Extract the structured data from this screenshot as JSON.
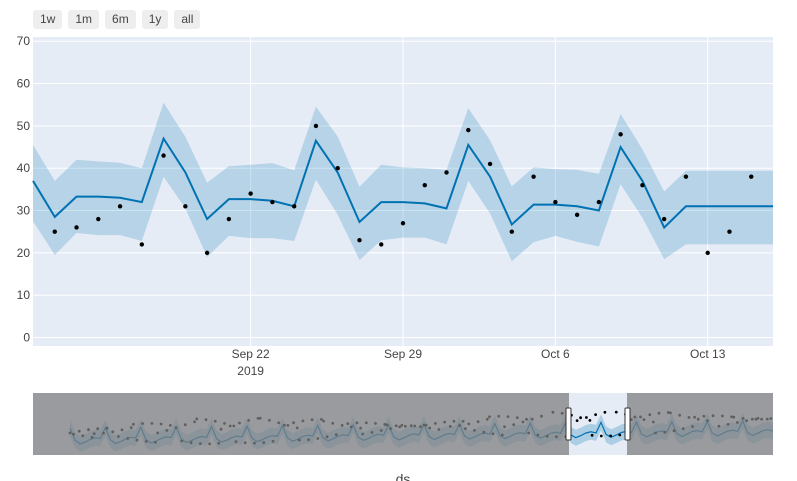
{
  "range_selector": {
    "buttons": [
      "1w",
      "1m",
      "6m",
      "1y",
      "all"
    ]
  },
  "colors": {
    "plot_background": "#e5ecf6",
    "band": "#0072b2",
    "line": "#0072b2",
    "points": "#000000",
    "slider_shade": "#808080"
  },
  "chart_data": {
    "type": "line",
    "xlabel": "ds",
    "ylabel": "",
    "ylim": [
      -2,
      71
    ],
    "xlim": [
      "2019-09-12",
      "2019-10-16"
    ],
    "grid": true,
    "yticks": [
      0,
      10,
      20,
      30,
      40,
      50,
      60,
      70
    ],
    "xticks": [
      {
        "date": "2019-09-22",
        "label": "Sep 22",
        "sublabel": "2019"
      },
      {
        "date": "2019-09-29",
        "label": "Sep 29",
        "sublabel": ""
      },
      {
        "date": "2019-10-06",
        "label": "Oct 6",
        "sublabel": ""
      },
      {
        "date": "2019-10-13",
        "label": "Oct 13",
        "sublabel": ""
      }
    ],
    "forecast": {
      "x": [
        "2019-09-12",
        "2019-09-13",
        "2019-09-14",
        "2019-09-15",
        "2019-09-16",
        "2019-09-17",
        "2019-09-18",
        "2019-09-19",
        "2019-09-20",
        "2019-09-21",
        "2019-09-22",
        "2019-09-23",
        "2019-09-24",
        "2019-09-25",
        "2019-09-26",
        "2019-09-27",
        "2019-09-28",
        "2019-09-29",
        "2019-09-30",
        "2019-10-01",
        "2019-10-02",
        "2019-10-03",
        "2019-10-04",
        "2019-10-05",
        "2019-10-06",
        "2019-10-07",
        "2019-10-08",
        "2019-10-09",
        "2019-10-10",
        "2019-10-11",
        "2019-10-12",
        "2019-10-13",
        "2019-10-14",
        "2019-10-15",
        "2019-10-16"
      ],
      "yhat": [
        37,
        28.5,
        33.3,
        33.3,
        33,
        32,
        47,
        39,
        28,
        32.7,
        32.7,
        32.3,
        31,
        46.5,
        39,
        27.3,
        32,
        32,
        31.7,
        30.5,
        45.5,
        38,
        26.7,
        31.4,
        31.4,
        31,
        30,
        45,
        37,
        26,
        31,
        31,
        31,
        31,
        31
      ],
      "lower": [
        27.5,
        19.5,
        24.7,
        24.2,
        24.2,
        22.8,
        38,
        30.5,
        19,
        24,
        23.5,
        23.5,
        22.8,
        37.3,
        29,
        18.3,
        23,
        23.6,
        23.6,
        22,
        37,
        29.3,
        18,
        22.5,
        24,
        22.6,
        21.5,
        36.2,
        28.3,
        18.5,
        22,
        22,
        22,
        22,
        22
      ],
      "upper": [
        45.5,
        37,
        42,
        41.6,
        41.3,
        40,
        55.5,
        47.4,
        36.6,
        40.5,
        40.8,
        41.2,
        39.5,
        54.5,
        47.5,
        35.6,
        40.8,
        40.2,
        40,
        39.6,
        54.2,
        46.6,
        35.7,
        40.2,
        39.8,
        39.6,
        38.7,
        52.8,
        44.5,
        34.5,
        39.4,
        39.4,
        39.4,
        39.4,
        39.4
      ]
    },
    "observed": {
      "x": [
        "2019-09-13",
        "2019-09-14",
        "2019-09-15",
        "2019-09-16",
        "2019-09-17",
        "2019-09-18",
        "2019-09-19",
        "2019-09-20",
        "2019-09-21",
        "2019-09-22",
        "2019-09-23",
        "2019-09-24",
        "2019-09-25",
        "2019-09-26",
        "2019-09-27",
        "2019-09-28",
        "2019-09-29",
        "2019-09-30",
        "2019-10-01",
        "2019-10-02",
        "2019-10-03",
        "2019-10-04",
        "2019-10-05",
        "2019-10-06",
        "2019-10-07",
        "2019-10-08",
        "2019-10-09",
        "2019-10-10",
        "2019-10-11",
        "2019-10-12",
        "2019-10-13",
        "2019-10-14",
        "2019-10-15"
      ],
      "y": [
        25,
        26,
        28,
        31,
        22,
        43,
        31,
        20,
        28,
        34,
        32,
        31,
        50,
        40,
        23,
        22,
        27,
        36,
        39,
        49,
        41,
        25,
        38,
        32,
        29,
        32,
        48,
        36,
        28,
        38,
        20,
        25,
        38
      ]
    }
  }
}
